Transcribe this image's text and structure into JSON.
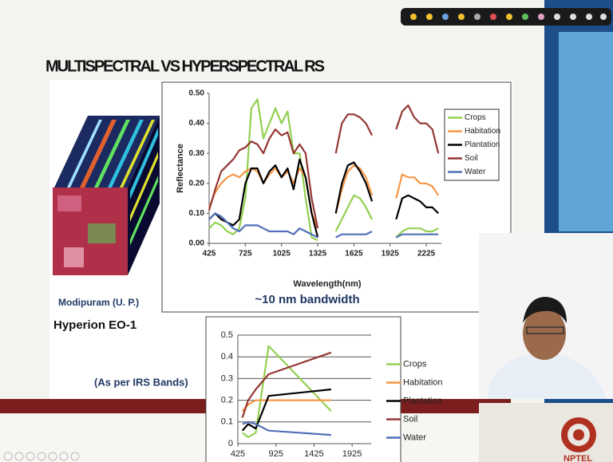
{
  "slide": {
    "title": "MULTISPECTRAL VS HYPERSPECTRAL RS",
    "image_caption": "Modipuram (U. P.)",
    "sensor": "Hyperion EO-1",
    "note": "(As per IRS Bands)",
    "logo_text": "NPTEL"
  },
  "chart_data": [
    {
      "type": "line",
      "subtitle": "~10 nm bandwidth",
      "x_label": "Wavelength(nm)",
      "y_label": "Reflectance",
      "x": [
        425,
        475,
        525,
        575,
        625,
        675,
        725,
        775,
        825,
        875,
        925,
        975,
        1025,
        1075,
        1125,
        1175,
        1225,
        1275,
        1325,
        1375,
        1425,
        1475,
        1525,
        1575,
        1625,
        1675,
        1725,
        1775,
        1825,
        1875,
        1925,
        1975,
        2025,
        2075,
        2125,
        2175,
        2225,
        2275,
        2325
      ],
      "series": [
        {
          "name": "Crops",
          "color": "#92d050",
          "values": [
            0.05,
            0.07,
            0.06,
            0.04,
            0.03,
            0.05,
            0.15,
            0.45,
            0.48,
            0.35,
            0.4,
            0.45,
            0.4,
            0.44,
            0.3,
            0.3,
            0.15,
            0.02,
            0.01,
            null,
            null,
            0.04,
            0.08,
            0.12,
            0.16,
            0.15,
            0.12,
            0.08,
            null,
            null,
            null,
            0.02,
            0.04,
            0.05,
            0.05,
            0.05,
            0.04,
            0.04,
            0.05
          ]
        },
        {
          "name": "Habitation",
          "color": "#f79646",
          "values": [
            0.12,
            0.17,
            0.2,
            0.22,
            0.23,
            0.22,
            0.24,
            0.25,
            0.24,
            0.2,
            0.23,
            0.25,
            0.22,
            0.24,
            0.2,
            0.25,
            0.22,
            0.1,
            0.05,
            null,
            null,
            0.1,
            0.18,
            0.24,
            0.26,
            0.25,
            0.22,
            0.16,
            null,
            null,
            null,
            0.15,
            0.23,
            0.22,
            0.22,
            0.2,
            0.2,
            0.19,
            0.16
          ]
        },
        {
          "name": "Plantation",
          "color": "#000000",
          "values": [
            0.08,
            0.1,
            0.08,
            0.07,
            0.06,
            0.08,
            0.2,
            0.25,
            0.25,
            0.2,
            0.24,
            0.26,
            0.22,
            0.25,
            0.18,
            0.28,
            0.22,
            0.1,
            0.02,
            null,
            null,
            0.1,
            0.2,
            0.26,
            0.27,
            0.24,
            0.2,
            0.14,
            null,
            null,
            null,
            0.08,
            0.15,
            0.16,
            0.15,
            0.14,
            0.12,
            0.12,
            0.1
          ]
        },
        {
          "name": "Soil",
          "color": "#953735",
          "values": [
            0.11,
            0.18,
            0.24,
            0.26,
            0.28,
            0.31,
            0.32,
            0.34,
            0.33,
            0.3,
            0.35,
            0.38,
            0.36,
            0.37,
            0.3,
            0.33,
            0.3,
            0.15,
            0.05,
            null,
            null,
            0.3,
            0.4,
            0.43,
            0.43,
            0.42,
            0.4,
            0.36,
            null,
            null,
            null,
            0.38,
            0.44,
            0.46,
            0.42,
            0.4,
            0.4,
            0.38,
            0.3
          ]
        },
        {
          "name": "Water",
          "color": "#4f6fb8",
          "values": [
            0.08,
            0.1,
            0.09,
            0.07,
            0.05,
            0.04,
            0.06,
            0.06,
            0.06,
            0.05,
            0.04,
            0.04,
            0.04,
            0.04,
            0.03,
            0.05,
            0.04,
            0.03,
            0.02,
            null,
            null,
            0.02,
            0.03,
            0.03,
            0.03,
            0.03,
            0.03,
            0.04,
            null,
            null,
            null,
            0.02,
            0.03,
            0.03,
            0.03,
            0.03,
            0.03,
            0.03,
            0.03
          ]
        }
      ],
      "xlim": [
        425,
        2350
      ],
      "xticks": [
        425,
        725,
        1025,
        1325,
        1625,
        1925,
        2225
      ],
      "ylim": [
        0,
        0.5
      ],
      "yticks": [
        {
          "value": 0,
          "label": "0.00"
        },
        {
          "value": 0.1,
          "label": "0.10"
        },
        {
          "value": 0.2,
          "label": "0.20"
        },
        {
          "value": 0.3,
          "label": "0.30"
        },
        {
          "value": 0.4,
          "label": "0.40"
        },
        {
          "value": 0.5,
          "label": "0.50"
        }
      ],
      "grid": false,
      "legend": "right"
    },
    {
      "type": "line",
      "x": [
        485,
        560,
        660,
        830,
        1650
      ],
      "series": [
        {
          "name": "Crops",
          "color": "#92d050",
          "values": [
            0.05,
            0.03,
            0.05,
            0.45,
            0.15
          ]
        },
        {
          "name": "Habitation",
          "color": "#f79646",
          "values": [
            0.15,
            0.18,
            0.2,
            0.2,
            0.2
          ]
        },
        {
          "name": "Plantation",
          "color": "#000000",
          "values": [
            0.06,
            0.09,
            0.07,
            0.22,
            0.25
          ]
        },
        {
          "name": "Soil",
          "color": "#953735",
          "values": [
            0.12,
            0.2,
            0.25,
            0.32,
            0.42
          ]
        },
        {
          "name": "Water",
          "color": "#4f6fb8",
          "values": [
            0.09,
            0.1,
            0.09,
            0.06,
            0.04
          ]
        }
      ],
      "xlim": [
        425,
        2175
      ],
      "xticks": [
        425,
        925,
        1425,
        1925
      ],
      "ylim": [
        0,
        0.5
      ],
      "yticks": [
        0,
        0.1,
        0.2,
        0.3,
        0.4,
        0.5
      ],
      "grid": true,
      "legend": "right"
    }
  ]
}
